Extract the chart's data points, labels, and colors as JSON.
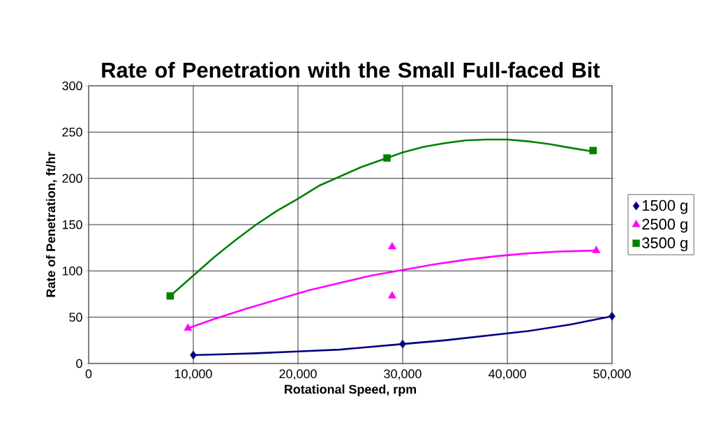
{
  "chart_data": {
    "type": "scatter",
    "title": "Rate of Penetration with the Small Full-faced Bit",
    "xlabel": "Rotational Speed, rpm",
    "ylabel": "Rate  of Penetration, ft/hr",
    "xlim": [
      0,
      50000
    ],
    "ylim": [
      0,
      300
    ],
    "xticks": [
      0,
      {
        "value": 10000,
        "label": "10,000"
      },
      {
        "value": 20000,
        "label": "20,000"
      },
      {
        "value": 30000,
        "label": "30,000"
      },
      {
        "value": 40000,
        "label": "40,000"
      },
      {
        "value": 50000,
        "label": "50,000"
      }
    ],
    "yticks": [
      0,
      50,
      100,
      150,
      200,
      250,
      300
    ],
    "grid": true,
    "legend": "right",
    "series": [
      {
        "name": "1500 g",
        "color": "#000080",
        "marker": "diamond",
        "x": [
          10000,
          30000,
          50000
        ],
        "values": [
          9,
          21,
          51
        ]
      },
      {
        "name": "2500 g",
        "color": "#ff00ff",
        "marker": "triangle",
        "x": [
          9500,
          29000,
          29000,
          48500
        ],
        "values": [
          38,
          126,
          73,
          122
        ]
      },
      {
        "name": "3500 g",
        "color": "#008000",
        "marker": "square",
        "x": [
          7800,
          28500,
          48200
        ],
        "values": [
          73,
          222,
          230
        ]
      },
      {
        "type": "line",
        "color": "#000080",
        "marker": "none",
        "x": [
          10000,
          13000,
          16000,
          20000,
          24000,
          28000,
          30000,
          34000,
          38000,
          42000,
          46000,
          50000
        ],
        "values": [
          9,
          10,
          11,
          13,
          15,
          19,
          21,
          25,
          30,
          35,
          42,
          51
        ]
      },
      {
        "type": "line",
        "color": "#ff00ff",
        "marker": "none",
        "x": [
          9500,
          12000,
          15000,
          18000,
          21000,
          24000,
          27000,
          30000,
          33000,
          36000,
          39000,
          42000,
          45000,
          48500
        ],
        "values": [
          38,
          48,
          59,
          69,
          79,
          87,
          95,
          101,
          107,
          112,
          116,
          119,
          121,
          122
        ]
      },
      {
        "type": "line",
        "color": "#008000",
        "marker": "none",
        "x": [
          7800,
          9000,
          10000,
          12000,
          14000,
          16000,
          18000,
          20000,
          22000,
          24000,
          26000,
          28000,
          30000,
          32000,
          34000,
          36000,
          38000,
          40000,
          42000,
          44000,
          46000,
          48200
        ],
        "values": [
          73,
          85,
          95,
          115,
          133,
          150,
          165,
          178,
          192,
          202,
          212,
          220,
          228,
          234,
          238,
          241,
          242,
          242,
          240,
          237,
          233,
          229
        ]
      }
    ]
  }
}
